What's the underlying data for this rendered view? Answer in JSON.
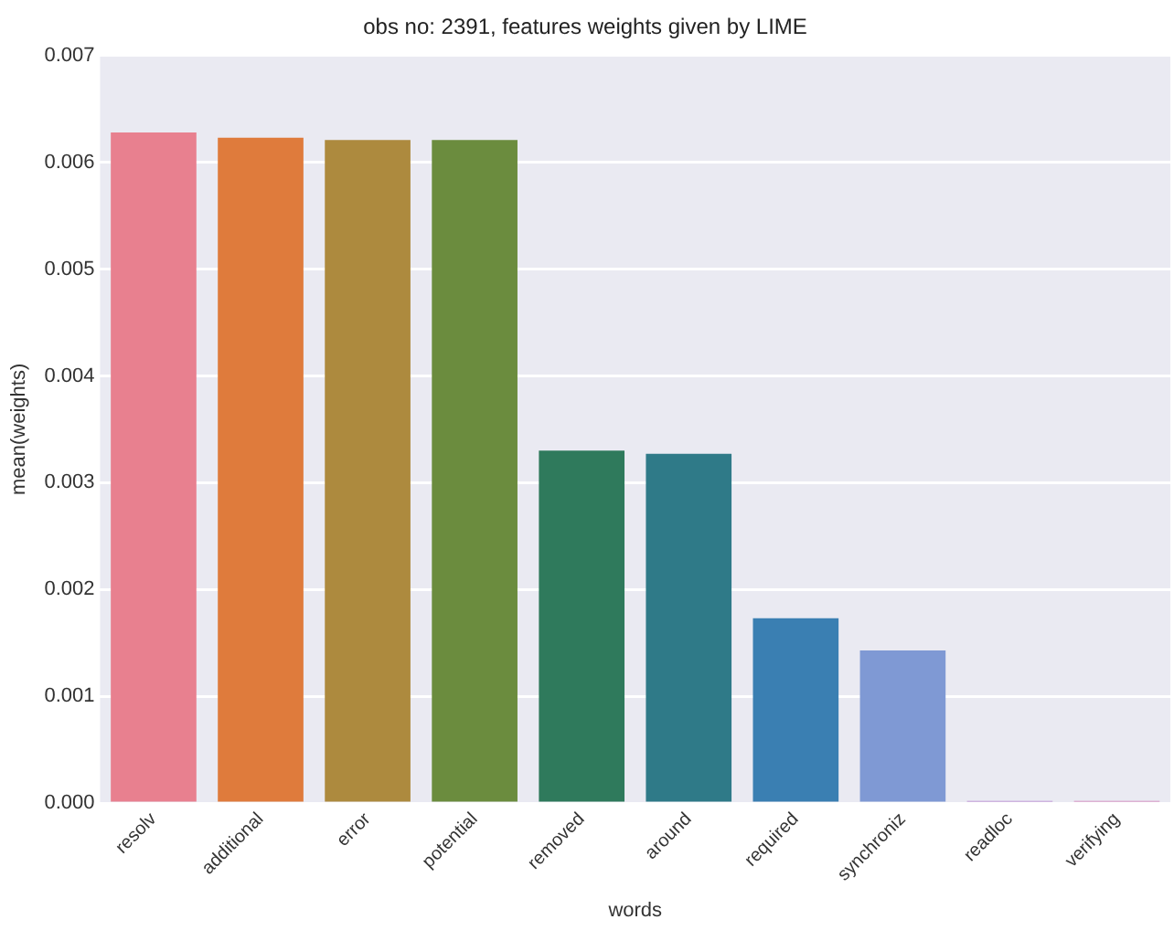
{
  "chart_data": {
    "type": "bar",
    "title": "obs no: 2391, features weights given by LIME",
    "xlabel": "words",
    "ylabel": "mean(weights)",
    "categories": [
      "resolv",
      "additional",
      "error",
      "potential",
      "removed",
      "around",
      "required",
      "synchroniz",
      "readloc",
      "verifying"
    ],
    "values": [
      0.00628,
      0.00623,
      0.00621,
      0.00621,
      0.0033,
      0.00327,
      0.00173,
      0.00143,
      2e-05,
      2e-05
    ],
    "colors": [
      "#e8808f",
      "#df7b3c",
      "#ad8a3e",
      "#6b8c3e",
      "#2f7a5c",
      "#2f7a88",
      "#3a7fb2",
      "#7f99d4",
      "#b47fce",
      "#cf78b4"
    ],
    "ylim": [
      0,
      0.007
    ],
    "yticks": [
      {
        "value": 0,
        "label": "0.000"
      },
      {
        "value": 0.001,
        "label": "0.001"
      },
      {
        "value": 0.002,
        "label": "0.002"
      },
      {
        "value": 0.003,
        "label": "0.003"
      },
      {
        "value": 0.004,
        "label": "0.004"
      },
      {
        "value": 0.005,
        "label": "0.005"
      },
      {
        "value": 0.006,
        "label": "0.006"
      },
      {
        "value": 0.007,
        "label": "0.007"
      }
    ],
    "grid": "y"
  }
}
